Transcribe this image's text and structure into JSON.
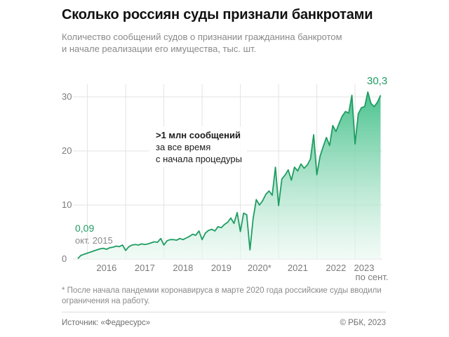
{
  "header": {
    "title": "Сколько россиян суды признали банкротами",
    "subtitle_line1": "Количество сообщений судов о признании гражданина банкротом",
    "subtitle_line2": "и начале реализации его имущества, тыс. шт."
  },
  "footnote": {
    "line1": "* После начала пандемии коронавируса в марте 2020 года российские суды вводили",
    "line2": "ограничения на работу."
  },
  "footer": {
    "source": "Источник: «Федресурс»",
    "copyright": "© РБК, 2023"
  },
  "chart_data": {
    "type": "area",
    "ylim": [
      0,
      33
    ],
    "y_ticks": [
      "0",
      "10",
      "20",
      "30"
    ],
    "grid": true,
    "x_tick_labels": [
      "2016",
      "2017",
      "2018",
      "2019",
      "2020*",
      "2021",
      "2022",
      "2023"
    ],
    "x_tick_sublabel": "по сент.",
    "annotations": {
      "start_value": "0,09",
      "start_date": "окт. 2015",
      "end_value": "30,3",
      "callout_line1": ">1 млн сообщений",
      "callout_line2": "за все время",
      "callout_line3": "с начала процедуры"
    },
    "colors": {
      "line": "#1f9d62",
      "fill_top": "#3fbf87",
      "fill_bottom": "#eaf8f1",
      "grid": "#e3e3e3"
    },
    "series": [
      {
        "x": [
          "2015-10",
          "2015-11",
          "2015-12",
          "2016-01",
          "2016-02",
          "2016-03",
          "2016-04",
          "2016-05",
          "2016-06",
          "2016-07",
          "2016-08",
          "2016-09",
          "2016-10",
          "2016-11",
          "2016-12",
          "2017-01",
          "2017-02",
          "2017-03",
          "2017-04",
          "2017-05",
          "2017-06",
          "2017-07",
          "2017-08",
          "2017-09",
          "2017-10",
          "2017-11",
          "2017-12",
          "2018-01",
          "2018-02",
          "2018-03",
          "2018-04",
          "2018-05",
          "2018-06",
          "2018-07",
          "2018-08",
          "2018-09",
          "2018-10",
          "2018-11",
          "2018-12",
          "2019-01",
          "2019-02",
          "2019-03",
          "2019-04",
          "2019-05",
          "2019-06",
          "2019-07",
          "2019-08",
          "2019-09",
          "2019-10",
          "2019-11",
          "2019-12",
          "2020-01",
          "2020-02",
          "2020-03",
          "2020-04",
          "2020-05",
          "2020-06",
          "2020-07",
          "2020-08",
          "2020-09",
          "2020-10",
          "2020-11",
          "2020-12",
          "2021-01",
          "2021-02",
          "2021-03",
          "2021-04",
          "2021-05",
          "2021-06",
          "2021-07",
          "2021-08",
          "2021-09",
          "2021-10",
          "2021-11",
          "2021-12",
          "2022-01",
          "2022-02",
          "2022-03",
          "2022-04",
          "2022-05",
          "2022-06",
          "2022-07",
          "2022-08",
          "2022-09",
          "2022-10",
          "2022-11",
          "2022-12",
          "2023-01",
          "2023-02",
          "2023-03",
          "2023-04",
          "2023-05",
          "2023-06",
          "2023-07",
          "2023-08",
          "2023-09"
        ],
        "values": [
          0.09,
          0.7,
          0.9,
          1.1,
          1.3,
          1.5,
          1.7,
          1.9,
          2.0,
          1.8,
          2.1,
          2.2,
          2.4,
          2.3,
          2.6,
          1.6,
          2.3,
          2.6,
          2.7,
          2.6,
          2.8,
          2.7,
          2.8,
          3.0,
          3.2,
          3.1,
          3.8,
          2.6,
          3.4,
          3.6,
          3.6,
          3.5,
          3.8,
          3.6,
          3.9,
          4.2,
          4.6,
          4.4,
          5.2,
          3.6,
          4.8,
          5.3,
          5.5,
          5.2,
          6.0,
          5.8,
          6.4,
          6.8,
          7.6,
          6.6,
          8.6,
          5.1,
          8.5,
          8.2,
          1.7,
          7.5,
          11.0,
          10.0,
          10.8,
          12.0,
          12.6,
          11.8,
          17.0,
          9.9,
          14.8,
          15.5,
          16.5,
          14.6,
          17.0,
          16.3,
          17.6,
          16.8,
          17.4,
          18.5,
          23.0,
          15.6,
          19.0,
          20.8,
          22.5,
          21.0,
          24.7,
          23.6,
          25.1,
          26.5,
          27.3,
          27.0,
          30.3,
          21.3,
          26.9,
          28.0,
          28.2,
          30.9,
          28.8,
          28.2,
          29.0,
          30.3
        ]
      }
    ]
  }
}
